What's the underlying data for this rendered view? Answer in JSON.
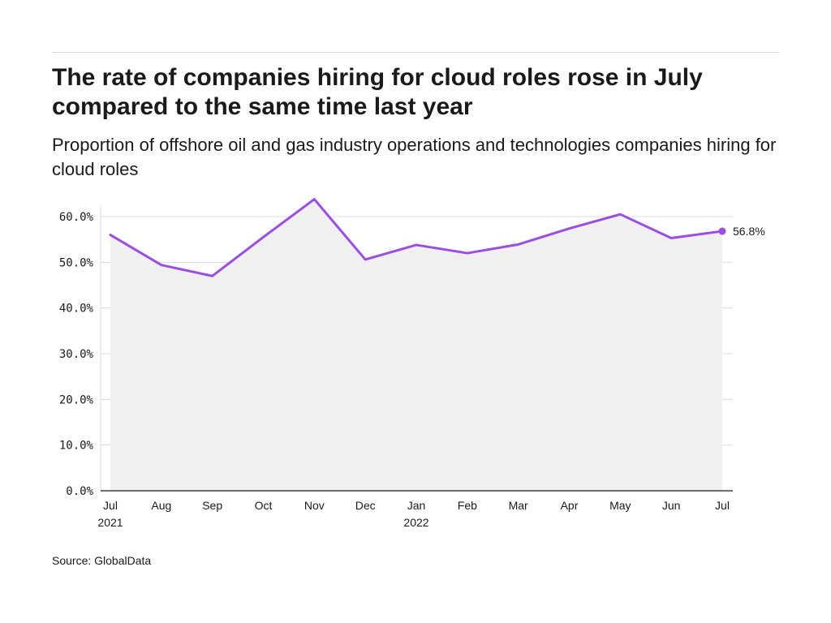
{
  "header": {
    "title": "The rate of companies hiring for cloud roles rose in July compared to the same time last year",
    "subtitle": "Proportion of offshore oil and gas industry operations and technologies companies hiring for cloud roles"
  },
  "footer": {
    "source": "Source: GlobalData"
  },
  "colors": {
    "line": "#9b4ee0",
    "area": "#f0f0f1",
    "grid": "#dcdcdc",
    "axis": "#1a1a1a"
  },
  "chart_data": {
    "type": "area",
    "x": [
      "Jul",
      "Aug",
      "Sep",
      "Oct",
      "Nov",
      "Dec",
      "Jan",
      "Feb",
      "Mar",
      "Apr",
      "May",
      "Jun",
      "Jul"
    ],
    "x_sublabels": [
      "2021",
      "",
      "",
      "",
      "",
      "",
      "2022",
      "",
      "",
      "",
      "",
      "",
      ""
    ],
    "series": [
      {
        "values": [
          56.0,
          49.4,
          47.0,
          55.5,
          63.8,
          50.6,
          53.8,
          52.0,
          53.9,
          57.4,
          60.5,
          55.3,
          56.8
        ]
      }
    ],
    "ylim": [
      0,
      60
    ],
    "yticks": [
      0,
      10,
      20,
      30,
      40,
      50,
      60
    ],
    "ytick_labels": [
      "0.0%",
      "10.0%",
      "20.0%",
      "30.0%",
      "40.0%",
      "50.0%",
      "60.0%"
    ],
    "end_label": "56.8%",
    "xlabel": "",
    "ylabel": "",
    "grid": true,
    "legend": "none"
  }
}
